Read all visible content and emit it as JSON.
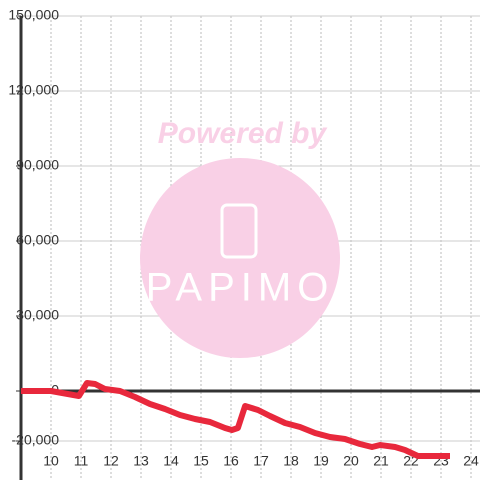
{
  "chart_data": {
    "type": "line",
    "watermark": [
      "Powered by",
      "PAPIMO"
    ],
    "x": [
      9.0,
      10.0,
      10.93,
      11.2,
      11.47,
      11.8,
      12.3,
      12.8,
      13.3,
      13.8,
      14.3,
      14.8,
      15.3,
      15.8,
      16.03,
      16.23,
      16.47,
      16.9,
      17.3,
      17.8,
      18.3,
      18.8,
      19.3,
      19.8,
      20.3,
      20.7,
      20.97,
      21.47,
      21.8,
      22.23,
      23.3
    ],
    "series": [
      {
        "color": "#e8283c",
        "values": [
          0,
          0,
          -2000,
          3200,
          2800,
          800,
          0,
          -2400,
          -5200,
          -7200,
          -9600,
          -11200,
          -12400,
          -14800,
          -15600,
          -14800,
          -6000,
          -7600,
          -10000,
          -12800,
          -14400,
          -16800,
          -18400,
          -19200,
          -21200,
          -22400,
          -21600,
          -22400,
          -23600,
          -26000,
          -26000
        ]
      }
    ],
    "xlim": [
      9,
      24.3
    ],
    "xticks": [
      10,
      11,
      12,
      13,
      14,
      15,
      16,
      17,
      18,
      19,
      20,
      21,
      22,
      23,
      24
    ],
    "ylim": [
      -35600,
      150000
    ],
    "yticks": [
      {
        "value": -20000,
        "label": "-20,000"
      },
      0,
      {
        "value": 30000,
        "label": "30,000"
      },
      {
        "value": 60000,
        "label": "60,000"
      },
      {
        "value": 90000,
        "label": "90,000"
      },
      {
        "value": 120000,
        "label": "120,000"
      },
      {
        "value": 150000,
        "label": "150,000"
      }
    ],
    "grid": true
  }
}
